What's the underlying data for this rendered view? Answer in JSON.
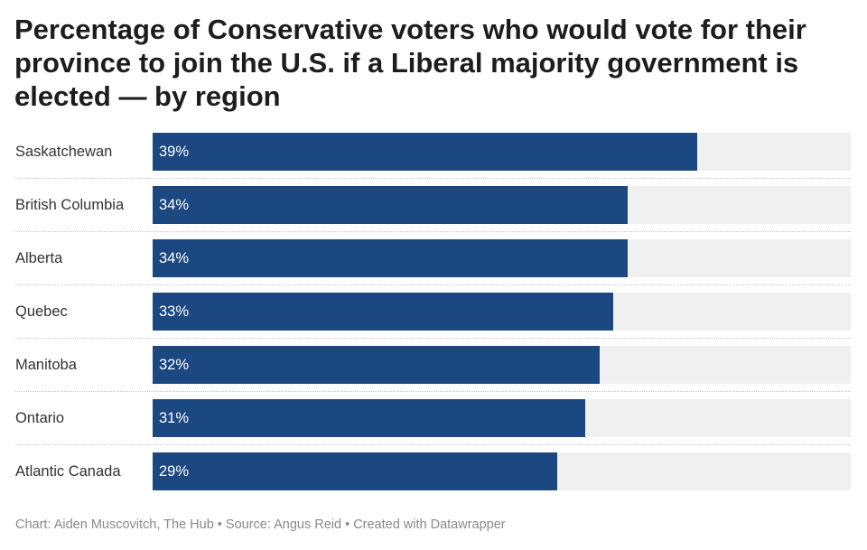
{
  "chart_data": {
    "type": "bar",
    "orientation": "horizontal",
    "title": "Percentage of Conservative voters who would vote for their province to join the U.S. if a Liberal majority government is elected — by region",
    "categories": [
      "Saskatchewan",
      "British Columbia",
      "Alberta",
      "Quebec",
      "Manitoba",
      "Ontario",
      "Atlantic Canada"
    ],
    "values": [
      39,
      34,
      34,
      33,
      32,
      31,
      29
    ],
    "value_labels": [
      "39%",
      "34%",
      "34%",
      "33%",
      "32%",
      "31%",
      "29%"
    ],
    "xlim": [
      0,
      50
    ],
    "grid": false,
    "bar_color": "#1c4882",
    "track_color": "#f0f0f0"
  },
  "footer": "Chart: Aiden Muscovitch, The Hub • Source: Angus Reid • Created with Datawrapper"
}
